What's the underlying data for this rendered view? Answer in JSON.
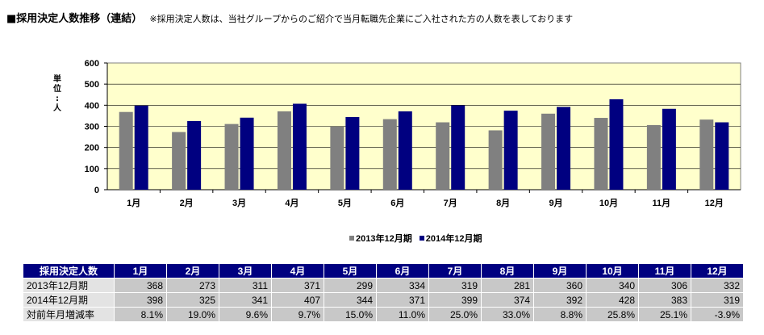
{
  "header": {
    "title": "■採用決定人数推移（連結）",
    "note": "※採用決定人数は、当社グループからのご紹介で当月転職先企業にご入社された方の人数を表しております"
  },
  "chart_data": {
    "type": "bar",
    "categories": [
      "1月",
      "2月",
      "3月",
      "4月",
      "5月",
      "6月",
      "7月",
      "8月",
      "9月",
      "10月",
      "11月",
      "12月"
    ],
    "series": [
      {
        "name": "2013年12月期",
        "values": [
          368,
          273,
          311,
          371,
          299,
          334,
          319,
          281,
          360,
          340,
          306,
          332
        ],
        "color": "#808080"
      },
      {
        "name": "2014年12月期",
        "values": [
          398,
          325,
          341,
          407,
          344,
          371,
          399,
          374,
          392,
          428,
          383,
          319
        ],
        "color": "#000080"
      }
    ],
    "ylabel": [
      "単",
      "位",
      ":",
      "人"
    ],
    "ylim": [
      0,
      600
    ],
    "yticks": [
      "0",
      "100",
      "200",
      "300",
      "400",
      "500",
      "600"
    ],
    "grid": true,
    "plot_background": "#ffffcc",
    "legend_position": "bottom-center"
  },
  "table": {
    "corner": "採用決定人数",
    "columns": [
      "1月",
      "2月",
      "3月",
      "4月",
      "5月",
      "6月",
      "7月",
      "8月",
      "9月",
      "10月",
      "11月",
      "12月"
    ],
    "rows": [
      {
        "label": "2013年12月期",
        "cells": [
          "368",
          "273",
          "311",
          "371",
          "299",
          "334",
          "319",
          "281",
          "360",
          "340",
          "306",
          "332"
        ]
      },
      {
        "label": "2014年12月期",
        "cells": [
          "398",
          "325",
          "341",
          "407",
          "344",
          "371",
          "399",
          "374",
          "392",
          "428",
          "383",
          "319"
        ]
      },
      {
        "label": "対前年月増減率",
        "cells": [
          "8.1%",
          "19.0%",
          "9.6%",
          "9.7%",
          "15.0%",
          "11.0%",
          "25.0%",
          "33.0%",
          "8.8%",
          "25.8%",
          "25.1%",
          "-3.9%"
        ]
      }
    ]
  }
}
